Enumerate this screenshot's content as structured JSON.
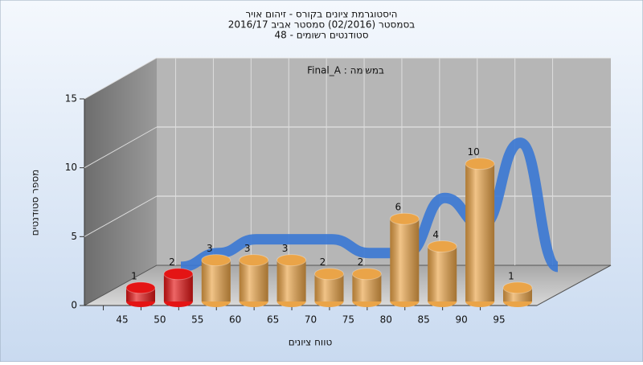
{
  "chart_data": {
    "type": "bar",
    "title": [
      "היסטוגרמת ציונים בקורס - זיהום אויר",
      "בסמסטר (02/2016) סמסטר אביב 2016/17",
      "סטודנטים רשומים - 48"
    ],
    "annotation": "Final_A : במשימה",
    "xlabel": "טווח ציונים",
    "ylabel": "מספר סטודנטים",
    "categories": [
      "45",
      "50",
      "55",
      "60",
      "65",
      "70",
      "75",
      "80",
      "85",
      "90",
      "95"
    ],
    "values": [
      1,
      2,
      3,
      3,
      3,
      2,
      2,
      6,
      4,
      10,
      1
    ],
    "colors": [
      "#e41414",
      "#e41414",
      "#eaa448",
      "#eaa448",
      "#eaa448",
      "#eaa448",
      "#eaa448",
      "#eaa448",
      "#eaa448",
      "#eaa448",
      "#eaa448"
    ],
    "line_color": "#3a78d4",
    "ylim": [
      0,
      15
    ],
    "yticks": [
      0,
      5,
      10,
      15
    ],
    "grid": true
  }
}
